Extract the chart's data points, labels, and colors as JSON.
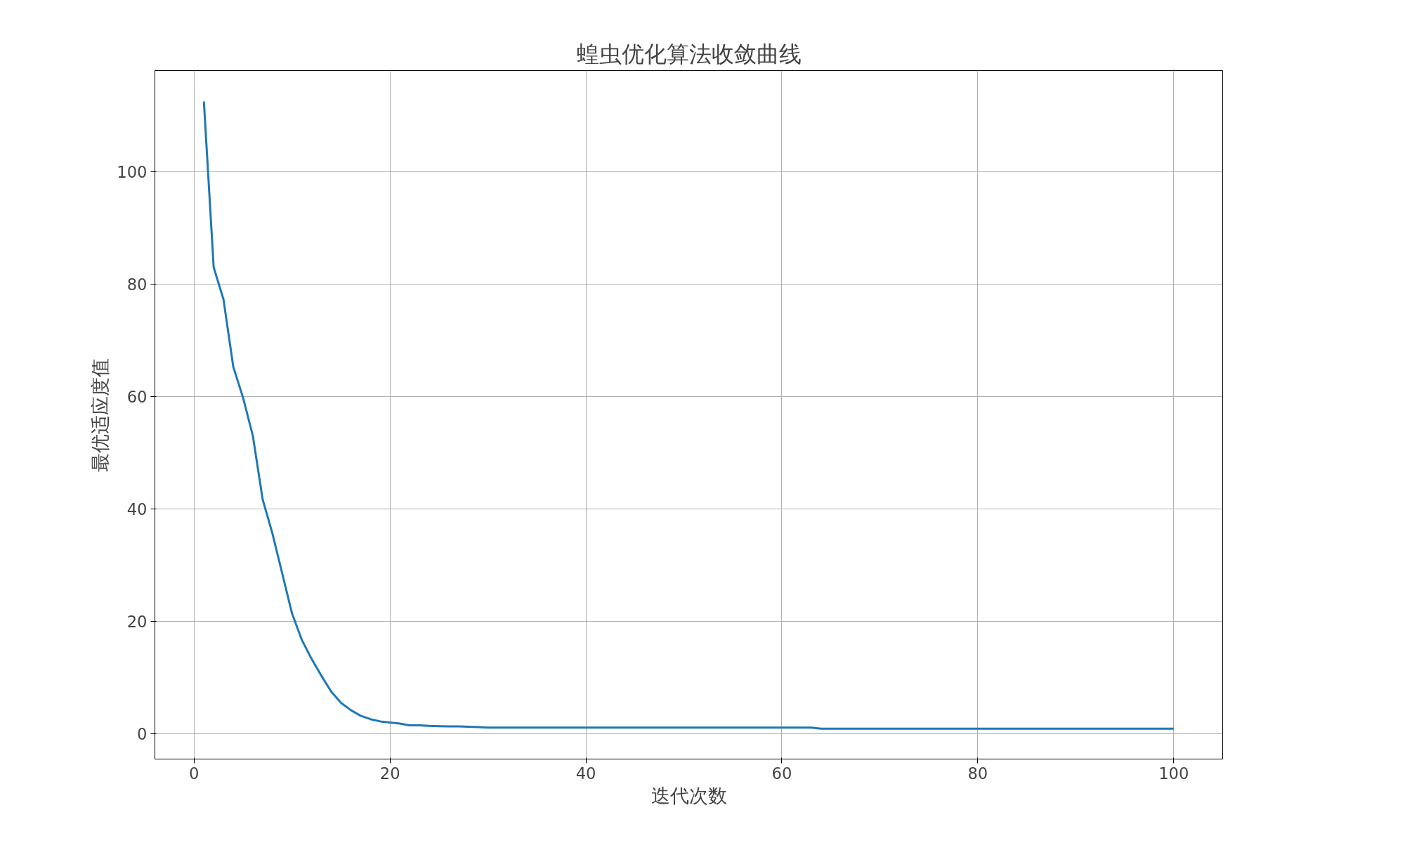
{
  "chart_data": {
    "type": "line",
    "title": "蝗虫优化算法收敛曲线",
    "xlabel": "迭代次数",
    "ylabel": "最优适应度值",
    "x": [
      1,
      2,
      3,
      4,
      5,
      6,
      7,
      8,
      9,
      10,
      11,
      12,
      13,
      14,
      15,
      16,
      17,
      18,
      19,
      20,
      21,
      22,
      23,
      24,
      25,
      26,
      27,
      28,
      29,
      30,
      40,
      50,
      60,
      63,
      64,
      70,
      80,
      90,
      100
    ],
    "series": [
      {
        "color": "#1f77b4",
        "values": [
          112.5,
          83,
          77.3,
          65.3,
          59.8,
          53,
          41.7,
          35.6,
          28.5,
          21.4,
          16.7,
          13.3,
          10.3,
          7.5,
          5.5,
          4.2,
          3.2,
          2.6,
          2.2,
          2.0,
          1.8,
          1.5,
          1.5,
          1.4,
          1.35,
          1.3,
          1.3,
          1.25,
          1.2,
          1.1,
          1.1,
          1.1,
          1.1,
          1.1,
          0.9,
          0.9,
          0.9,
          0.9,
          0.9
        ]
      }
    ],
    "xlim": [
      -4,
      105
    ],
    "ylim": [
      -4.5,
      118
    ],
    "xticks": [
      0,
      20,
      40,
      60,
      80,
      100
    ],
    "yticks": [
      0,
      20,
      40,
      60,
      80,
      100
    ],
    "grid": true,
    "line_style": "solid",
    "marker": "none"
  }
}
